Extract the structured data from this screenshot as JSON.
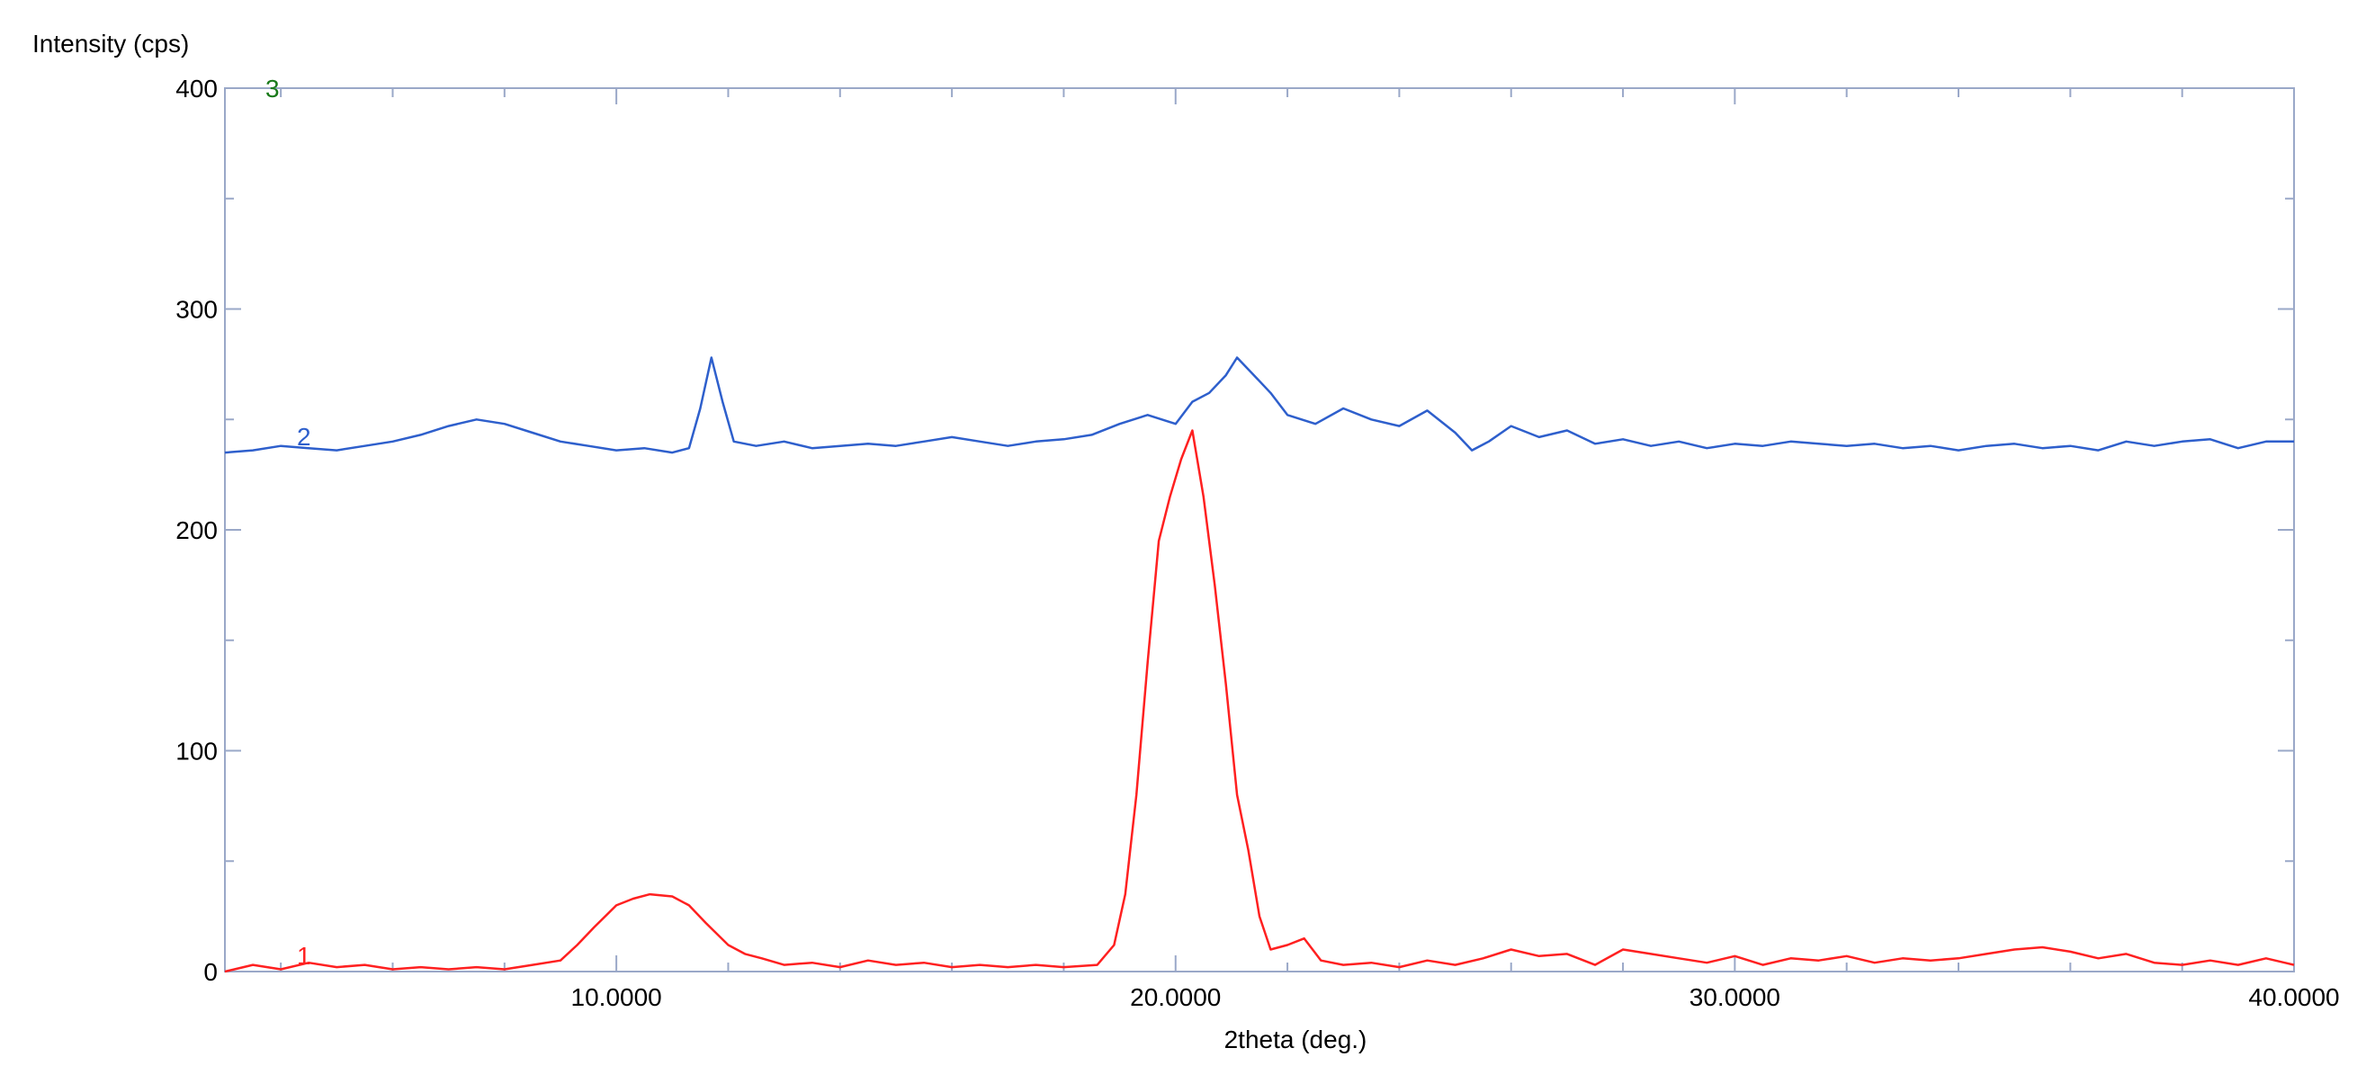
{
  "chart_data": {
    "type": "line",
    "ylabel": "Intensity (cps)",
    "xlabel": "2theta (deg.)",
    "xlim": [
      3.0,
      40.0
    ],
    "ylim": [
      0,
      400
    ],
    "x_ticks": [
      10,
      20,
      30,
      40
    ],
    "x_tick_labels": [
      "10.0000",
      "20.0000",
      "30.0000",
      "40.0000"
    ],
    "y_ticks": [
      0,
      100,
      200,
      300,
      400
    ],
    "y_tick_labels": [
      "0",
      "100",
      "200",
      "300",
      "400"
    ],
    "grid": false,
    "frame_color": "#9aa8c8",
    "series": [
      {
        "name": "1",
        "color": "#ff2020",
        "points": [
          [
            3.0,
            0
          ],
          [
            3.5,
            3
          ],
          [
            4.0,
            1
          ],
          [
            4.5,
            4
          ],
          [
            5.0,
            2
          ],
          [
            5.5,
            3
          ],
          [
            6.0,
            1
          ],
          [
            6.5,
            2
          ],
          [
            7.0,
            1
          ],
          [
            7.5,
            2
          ],
          [
            8.0,
            1
          ],
          [
            8.5,
            3
          ],
          [
            9.0,
            5
          ],
          [
            9.3,
            12
          ],
          [
            9.6,
            20
          ],
          [
            10.0,
            30
          ],
          [
            10.3,
            33
          ],
          [
            10.6,
            35
          ],
          [
            11.0,
            34
          ],
          [
            11.3,
            30
          ],
          [
            11.6,
            22
          ],
          [
            12.0,
            12
          ],
          [
            12.3,
            8
          ],
          [
            12.6,
            6
          ],
          [
            13.0,
            3
          ],
          [
            13.5,
            4
          ],
          [
            14.0,
            2
          ],
          [
            14.5,
            5
          ],
          [
            15.0,
            3
          ],
          [
            15.5,
            4
          ],
          [
            16.0,
            2
          ],
          [
            16.5,
            3
          ],
          [
            17.0,
            2
          ],
          [
            17.5,
            3
          ],
          [
            18.0,
            2
          ],
          [
            18.6,
            3
          ],
          [
            18.9,
            12
          ],
          [
            19.1,
            35
          ],
          [
            19.3,
            80
          ],
          [
            19.5,
            140
          ],
          [
            19.7,
            195
          ],
          [
            19.9,
            215
          ],
          [
            20.1,
            232
          ],
          [
            20.3,
            245
          ],
          [
            20.5,
            215
          ],
          [
            20.7,
            175
          ],
          [
            20.9,
            130
          ],
          [
            21.1,
            80
          ],
          [
            21.3,
            55
          ],
          [
            21.5,
            25
          ],
          [
            21.7,
            10
          ],
          [
            22.0,
            12
          ],
          [
            22.3,
            15
          ],
          [
            22.6,
            5
          ],
          [
            23.0,
            3
          ],
          [
            23.5,
            4
          ],
          [
            24.0,
            2
          ],
          [
            24.5,
            5
          ],
          [
            25.0,
            3
          ],
          [
            25.5,
            6
          ],
          [
            26.0,
            10
          ],
          [
            26.5,
            7
          ],
          [
            27.0,
            8
          ],
          [
            27.5,
            3
          ],
          [
            28.0,
            10
          ],
          [
            28.5,
            8
          ],
          [
            29.0,
            6
          ],
          [
            29.5,
            4
          ],
          [
            30.0,
            7
          ],
          [
            30.5,
            3
          ],
          [
            31.0,
            6
          ],
          [
            31.5,
            5
          ],
          [
            32.0,
            7
          ],
          [
            32.5,
            4
          ],
          [
            33.0,
            6
          ],
          [
            33.5,
            5
          ],
          [
            34.0,
            6
          ],
          [
            34.5,
            8
          ],
          [
            35.0,
            10
          ],
          [
            35.5,
            11
          ],
          [
            36.0,
            9
          ],
          [
            36.5,
            6
          ],
          [
            37.0,
            8
          ],
          [
            37.5,
            4
          ],
          [
            38.0,
            3
          ],
          [
            38.5,
            5
          ],
          [
            39.0,
            3
          ],
          [
            39.5,
            6
          ],
          [
            40.0,
            3
          ]
        ]
      },
      {
        "name": "2",
        "color": "#2e5fcc",
        "points": [
          [
            3.0,
            235
          ],
          [
            3.5,
            236
          ],
          [
            4.0,
            238
          ],
          [
            4.5,
            237
          ],
          [
            5.0,
            236
          ],
          [
            5.5,
            238
          ],
          [
            6.0,
            240
          ],
          [
            6.5,
            243
          ],
          [
            7.0,
            247
          ],
          [
            7.5,
            250
          ],
          [
            8.0,
            248
          ],
          [
            8.5,
            244
          ],
          [
            9.0,
            240
          ],
          [
            9.5,
            238
          ],
          [
            10.0,
            236
          ],
          [
            10.5,
            237
          ],
          [
            11.0,
            235
          ],
          [
            11.3,
            237
          ],
          [
            11.5,
            255
          ],
          [
            11.7,
            278
          ],
          [
            11.9,
            258
          ],
          [
            12.1,
            240
          ],
          [
            12.5,
            238
          ],
          [
            13.0,
            240
          ],
          [
            13.5,
            237
          ],
          [
            14.0,
            238
          ],
          [
            14.5,
            239
          ],
          [
            15.0,
            238
          ],
          [
            15.5,
            240
          ],
          [
            16.0,
            242
          ],
          [
            16.5,
            240
          ],
          [
            17.0,
            238
          ],
          [
            17.5,
            240
          ],
          [
            18.0,
            241
          ],
          [
            18.5,
            243
          ],
          [
            19.0,
            248
          ],
          [
            19.5,
            252
          ],
          [
            20.0,
            248
          ],
          [
            20.3,
            258
          ],
          [
            20.6,
            262
          ],
          [
            20.9,
            270
          ],
          [
            21.1,
            278
          ],
          [
            21.4,
            270
          ],
          [
            21.7,
            262
          ],
          [
            22.0,
            252
          ],
          [
            22.5,
            248
          ],
          [
            23.0,
            255
          ],
          [
            23.5,
            250
          ],
          [
            24.0,
            247
          ],
          [
            24.5,
            254
          ],
          [
            25.0,
            244
          ],
          [
            25.3,
            236
          ],
          [
            25.6,
            240
          ],
          [
            26.0,
            247
          ],
          [
            26.5,
            242
          ],
          [
            27.0,
            245
          ],
          [
            27.5,
            239
          ],
          [
            28.0,
            241
          ],
          [
            28.5,
            238
          ],
          [
            29.0,
            240
          ],
          [
            29.5,
            237
          ],
          [
            30.0,
            239
          ],
          [
            30.5,
            238
          ],
          [
            31.0,
            240
          ],
          [
            31.5,
            239
          ],
          [
            32.0,
            238
          ],
          [
            32.5,
            239
          ],
          [
            33.0,
            237
          ],
          [
            33.5,
            238
          ],
          [
            34.0,
            236
          ],
          [
            34.5,
            238
          ],
          [
            35.0,
            239
          ],
          [
            35.5,
            237
          ],
          [
            36.0,
            238
          ],
          [
            36.5,
            236
          ],
          [
            37.0,
            240
          ],
          [
            37.5,
            238
          ],
          [
            38.0,
            240
          ],
          [
            38.5,
            241
          ],
          [
            39.0,
            237
          ],
          [
            39.5,
            240
          ],
          [
            40.0,
            240
          ]
        ]
      },
      {
        "name": "3",
        "color": "#1a7a1a",
        "points": []
      }
    ]
  }
}
